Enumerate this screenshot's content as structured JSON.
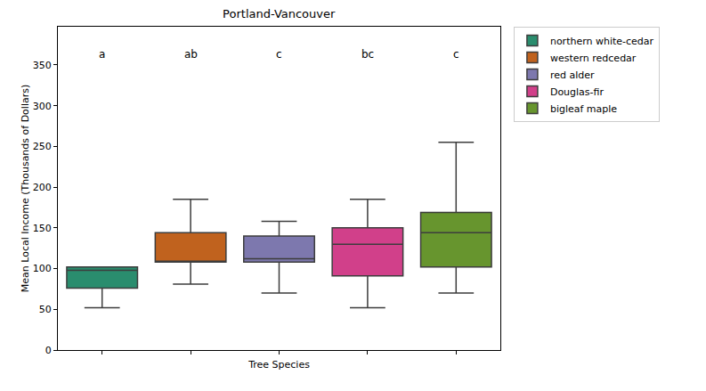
{
  "chart_data": {
    "type": "box",
    "title": "Portland-Vancouver",
    "x_label": "Tree Species",
    "y_label": "Mean Local Income (Thousands of Dollars)",
    "categories": [
      null,
      null,
      null,
      null,
      null
    ],
    "series": [
      {
        "name": "northern white-cedar",
        "color": "#2a8d6e",
        "lowerfence": 52,
        "q1": 76,
        "median": 98,
        "q3": 102,
        "upperfence": 102
      },
      {
        "name": "western redcedar",
        "color": "#c0621e",
        "lowerfence": 81,
        "q1": 108,
        "median": 109,
        "q3": 144,
        "upperfence": 185
      },
      {
        "name": "red alder",
        "color": "#7d78ae",
        "lowerfence": 70,
        "q1": 108,
        "median": 112,
        "q3": 140,
        "upperfence": 158
      },
      {
        "name": "Douglas-fir",
        "color": "#d1408a",
        "lowerfence": 52,
        "q1": 91,
        "median": 130,
        "q3": 150,
        "upperfence": 185
      },
      {
        "name": "bigleaf maple",
        "color": "#67952e",
        "lowerfence": 70,
        "q1": 102,
        "median": 144,
        "q3": 169,
        "upperfence": 255
      }
    ],
    "group_letters": [
      "a",
      "ab",
      "c",
      "bc",
      "c"
    ],
    "ylim": [
      0,
      397
    ],
    "yticks": [
      0,
      50,
      100,
      150,
      200,
      250,
      300,
      350
    ],
    "grid": false,
    "legend": "upper right",
    "tick_labels": "y"
  }
}
